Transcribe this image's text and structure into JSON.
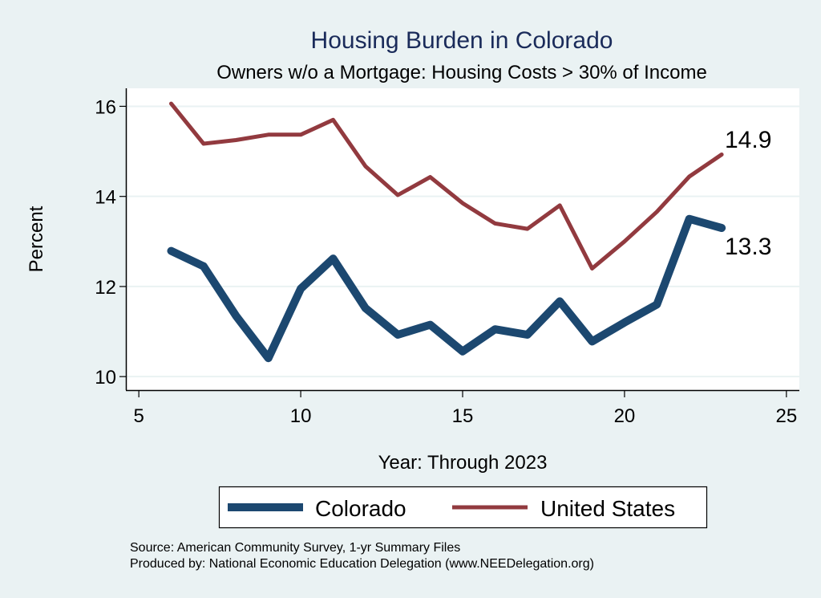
{
  "chart_data": {
    "type": "line",
    "title": "Housing Burden in Colorado",
    "subtitle": "Owners w/o a Mortgage: Housing Costs > 30% of Income",
    "xlabel": "Year: Through 2023",
    "ylabel": "Percent",
    "xlim": [
      4.6,
      25.4
    ],
    "ylim": [
      9.7,
      16.4
    ],
    "xticks": [
      5,
      10,
      15,
      20,
      25
    ],
    "yticks": [
      10,
      12,
      14,
      16
    ],
    "grid": "horizontal",
    "x": [
      6,
      7,
      8,
      9,
      10,
      11,
      12,
      13,
      14,
      15,
      16,
      17,
      18,
      19,
      20,
      21,
      22,
      23
    ],
    "series": [
      {
        "name": "Colorado",
        "color": "#1c4870",
        "values": [
          12.79,
          12.45,
          11.35,
          10.41,
          11.95,
          12.62,
          11.52,
          10.93,
          11.15,
          10.56,
          11.05,
          10.93,
          11.67,
          10.78,
          11.2,
          11.6,
          13.5,
          13.3
        ],
        "end_label": "13.3"
      },
      {
        "name": "United States",
        "color": "#923a3f",
        "values": [
          16.06,
          15.17,
          15.25,
          15.37,
          15.37,
          15.7,
          14.67,
          14.03,
          14.43,
          13.85,
          13.4,
          13.28,
          13.8,
          12.4,
          13.0,
          13.66,
          14.44,
          14.93
        ],
        "end_label": "14.9"
      }
    ],
    "legend": {
      "position": "bottom",
      "entries": [
        "Colorado",
        "United States"
      ]
    },
    "notes": [
      "Source: American Community Survey, 1-yr Summary Files",
      "Produced by: National Economic Education Delegation (www.NEEDelegation.org)"
    ]
  }
}
